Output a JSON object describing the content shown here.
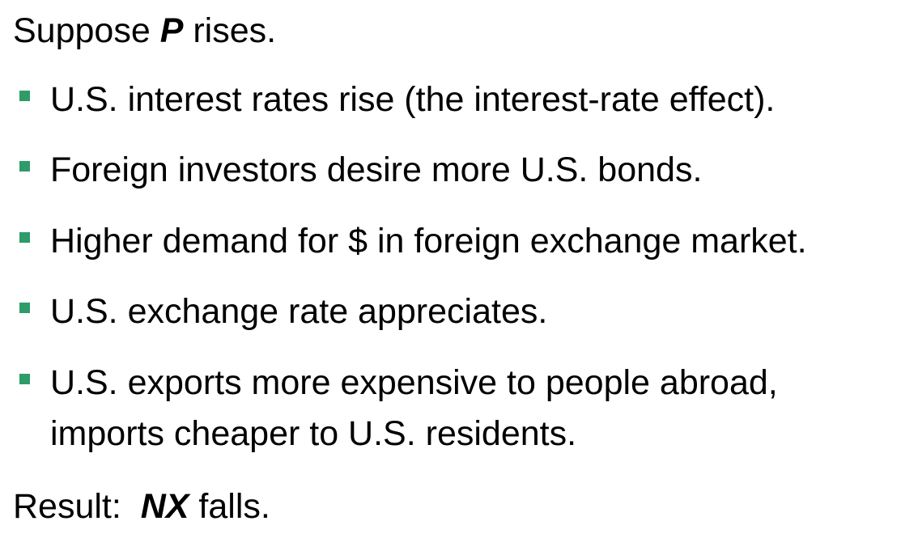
{
  "intro": {
    "prefix": "Suppose ",
    "variable": "P",
    "suffix": " rises."
  },
  "bullets": [
    {
      "lines": [
        "U.S. interest rates rise (the interest-rate effect)."
      ]
    },
    {
      "lines": [
        "Foreign investors desire more U.S. bonds."
      ]
    },
    {
      "lines": [
        "Higher demand for $ in foreign exchange market."
      ]
    },
    {
      "lines": [
        "U.S. exchange rate appreciates."
      ]
    },
    {
      "lines": [
        "U.S. exports more expensive to people abroad,",
        "imports cheaper to U.S. residents."
      ]
    }
  ],
  "result": {
    "prefix": "Result:  ",
    "variable": "NX",
    "suffix": " falls."
  },
  "colors": {
    "bullet": "#2e9b6a",
    "text": "#000000"
  }
}
